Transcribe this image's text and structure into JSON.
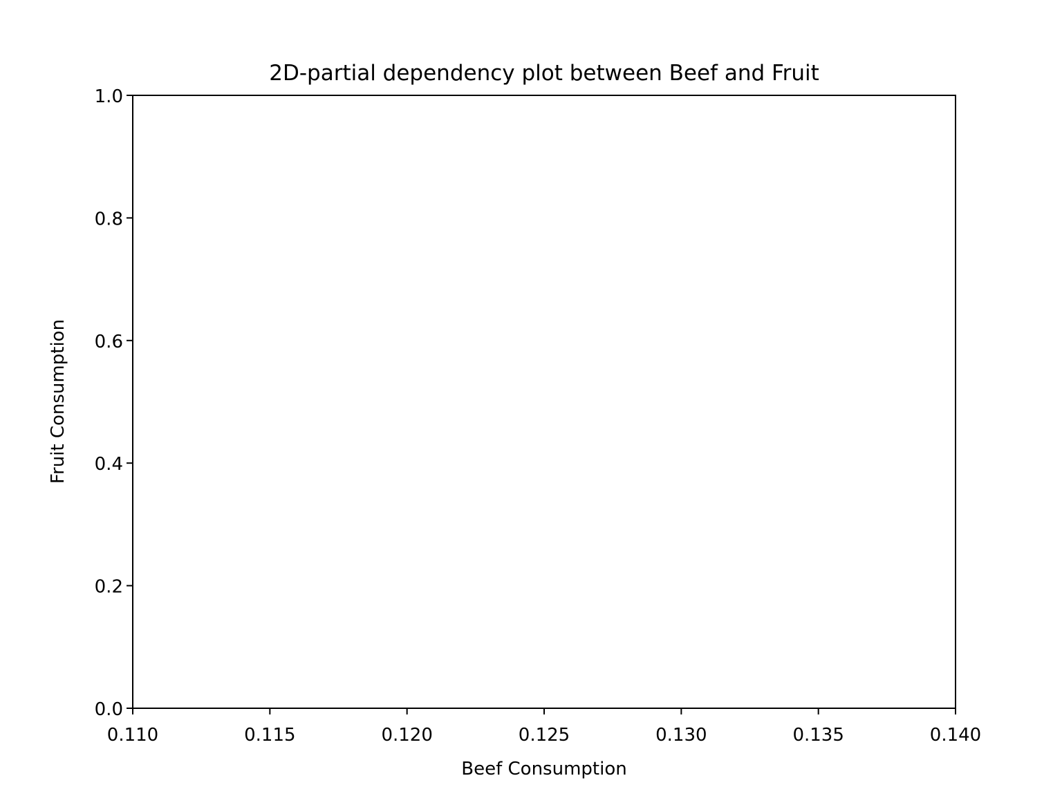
{
  "chart_data": {
    "type": "heatmap",
    "title": "2D-partial dependency plot between Beef and Fruit",
    "xlabel": "Beef Consumption",
    "ylabel": "Fruit Consumption",
    "xlim": [
      0.11,
      0.14
    ],
    "ylim": [
      0.0,
      1.0
    ],
    "xticks": [
      "0.110",
      "0.115",
      "0.120",
      "0.125",
      "0.130",
      "0.135",
      "0.140"
    ],
    "yticks": [
      "0.0",
      "0.2",
      "0.4",
      "0.6",
      "0.8",
      "1.0"
    ],
    "grid": false,
    "series": [],
    "colors": {
      "axes": "#000000",
      "background": "#ffffff"
    }
  }
}
